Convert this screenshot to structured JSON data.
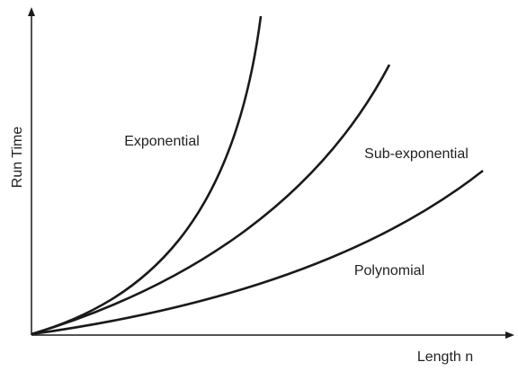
{
  "axes": {
    "y_label": "Run Time",
    "x_label": "Length n"
  },
  "curves": [
    {
      "label": "Exponential"
    },
    {
      "label": "Sub-exponential"
    },
    {
      "label": "Polynomial"
    }
  ]
}
